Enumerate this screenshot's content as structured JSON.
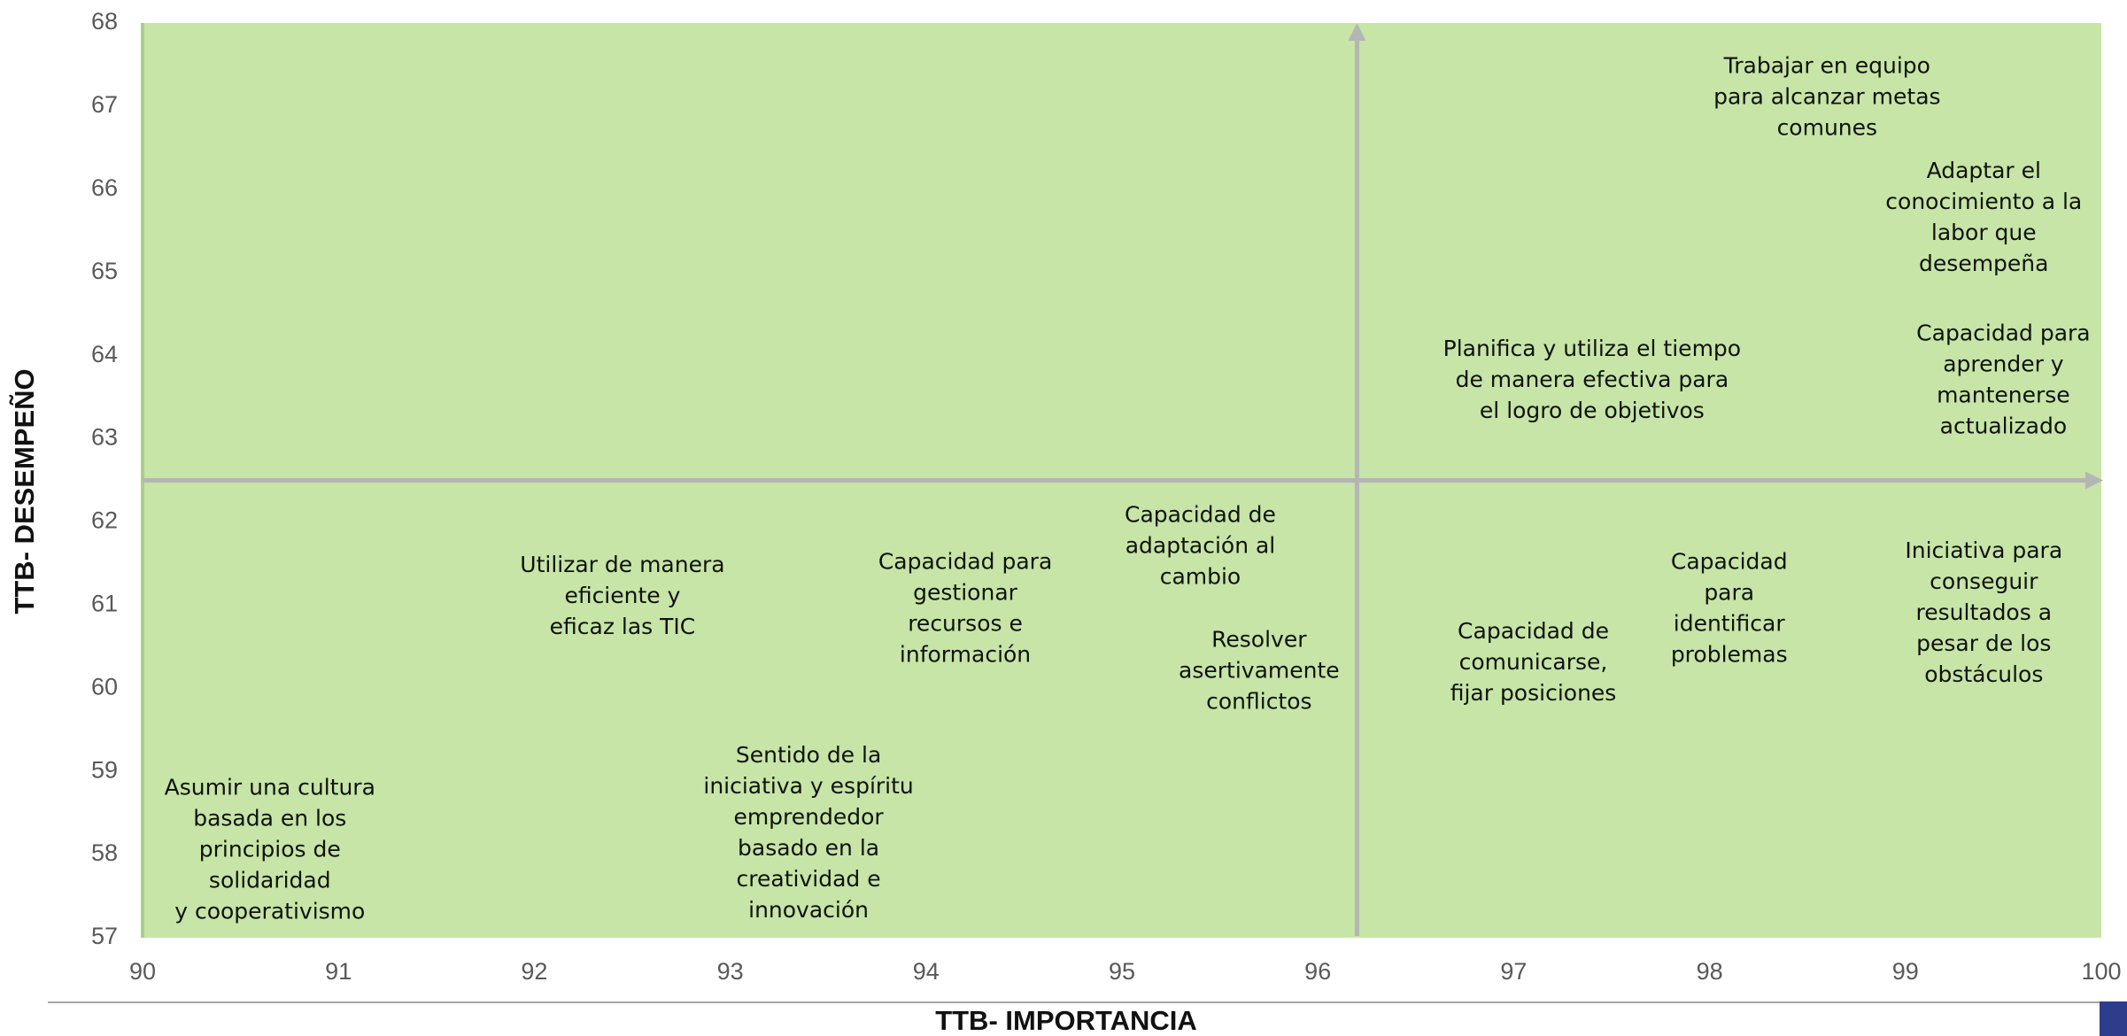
{
  "chart_data": {
    "type": "scatter",
    "x_label": "TTB-  IMPORTANCIA",
    "y_label": "TTB- DESEMPEÑO",
    "xlim": [
      90,
      100
    ],
    "ylim": [
      57,
      68
    ],
    "xticks": [
      90,
      91,
      92,
      93,
      94,
      95,
      96,
      97,
      98,
      99,
      100
    ],
    "yticks": [
      57,
      58,
      59,
      60,
      61,
      62,
      63,
      64,
      65,
      66,
      67,
      68
    ],
    "quadrant_x": 96.2,
    "quadrant_y": 62.5,
    "background": "#c6e5a6",
    "quadrant_color": "#b5b5b5",
    "x": [
      98.6,
      99.4,
      99.5,
      97.4,
      99.4,
      98.1,
      97.1,
      95.4,
      95.7,
      94.2,
      92.45,
      93.4,
      90.65
    ],
    "values": [
      67.1,
      65.65,
      63.7,
      63.7,
      60.9,
      60.95,
      60.3,
      61.7,
      60.2,
      60.95,
      61.1,
      58.25,
      58.05
    ],
    "labels": [
      [
        "Trabajar en equipo",
        "para alcanzar metas",
        "comunes"
      ],
      [
        "Adaptar el",
        "conocimiento a la",
        "labor que",
        "desempeña"
      ],
      [
        "Capacidad para",
        "aprender y",
        "mantenerse",
        "actualizado"
      ],
      [
        "Planifica y utiliza el tiempo",
        "de manera efectiva para",
        "el logro de objetivos"
      ],
      [
        "Iniciativa para",
        "conseguir",
        "resultados a",
        "pesar de los",
        "obstáculos"
      ],
      [
        "Capacidad",
        "para",
        "identificar",
        "problemas"
      ],
      [
        "Capacidad de",
        "comunicarse,",
        "fijar posiciones"
      ],
      [
        "Capacidad de",
        "adaptación al",
        "cambio"
      ],
      [
        "Resolver",
        "asertivamente",
        "conflictos"
      ],
      [
        "Capacidad para",
        "gestionar",
        "recursos e",
        "información"
      ],
      [
        "Utilizar de manera",
        "eficiente y",
        "eficaz las TIC"
      ],
      [
        "Sentido de la",
        "iniciativa y espíritu",
        "emprendedor",
        "basado en la",
        "creatividad e",
        "innovación"
      ],
      [
        "Asumir una cultura",
        "basada en los",
        "principios de",
        "solidaridad",
        "y cooperativismo"
      ]
    ]
  }
}
